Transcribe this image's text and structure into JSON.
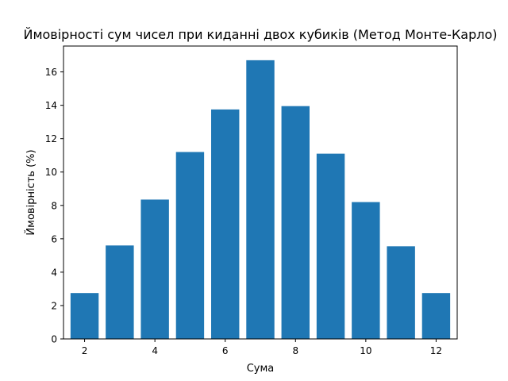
{
  "chart_data": {
    "type": "bar",
    "title": "Ймовірності сум чисел при киданні двох кубиків (Метод Монте-Карло)",
    "xlabel": "Сума",
    "ylabel": "Ймовірність (%)",
    "x": [
      2,
      3,
      4,
      5,
      6,
      7,
      8,
      9,
      10,
      11,
      12
    ],
    "values": [
      2.75,
      5.6,
      8.35,
      11.2,
      13.75,
      16.7,
      13.95,
      11.1,
      8.2,
      5.55,
      2.75
    ],
    "xlim": [
      1.4,
      12.6
    ],
    "ylim": [
      0,
      17.55
    ],
    "xticks": [
      2,
      4,
      6,
      8,
      10,
      12
    ],
    "yticks": [
      0,
      2,
      4,
      6,
      8,
      10,
      12,
      14,
      16
    ],
    "bar_width": 0.8,
    "bar_color": "#1f77b4",
    "grid": false,
    "legend": "none"
  }
}
